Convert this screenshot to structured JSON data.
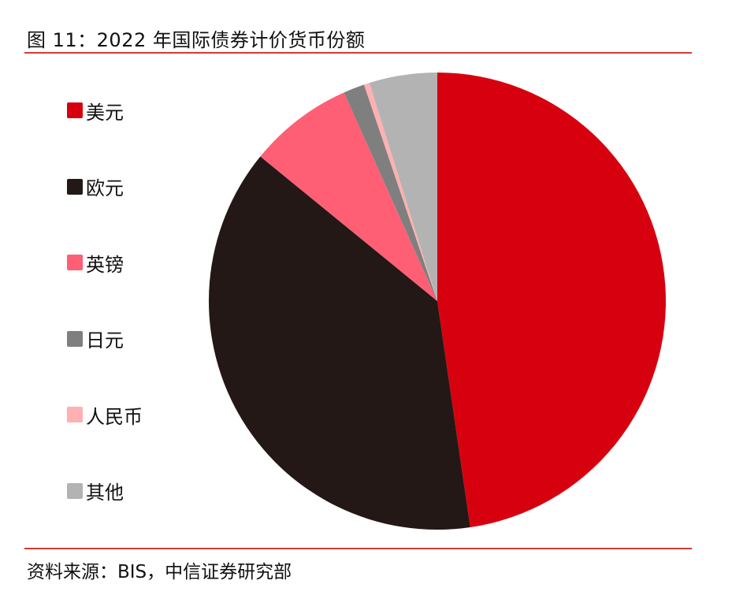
{
  "title": "图 11：2022 年国际债券计价货币份额",
  "source": "资料来源：BIS，中信证券研究部",
  "chart_data": {
    "type": "pie",
    "title": "2022 年国际债券计价货币份额",
    "start_angle": "12 o'clock, clockwise",
    "categories": [
      "美元",
      "欧元",
      "英镑",
      "日元",
      "人民币",
      "其他"
    ],
    "values": [
      47.7,
      38.2,
      7.4,
      1.5,
      0.4,
      4.8
    ],
    "unit": "%",
    "colors": [
      "#d7000f",
      "#231815",
      "#ff5f74",
      "#7f7f7f",
      "#ffb0b0",
      "#b3b3b3"
    ],
    "legend_position": "left",
    "data_labels": false
  },
  "legend": [
    {
      "label": "美元",
      "color": "#d7000f"
    },
    {
      "label": "欧元",
      "color": "#231815"
    },
    {
      "label": "英镑",
      "color": "#ff5f74"
    },
    {
      "label": "日元",
      "color": "#7f7f7f"
    },
    {
      "label": "人民币",
      "color": "#ffb0b0"
    },
    {
      "label": "其他",
      "color": "#b3b3b3"
    }
  ]
}
